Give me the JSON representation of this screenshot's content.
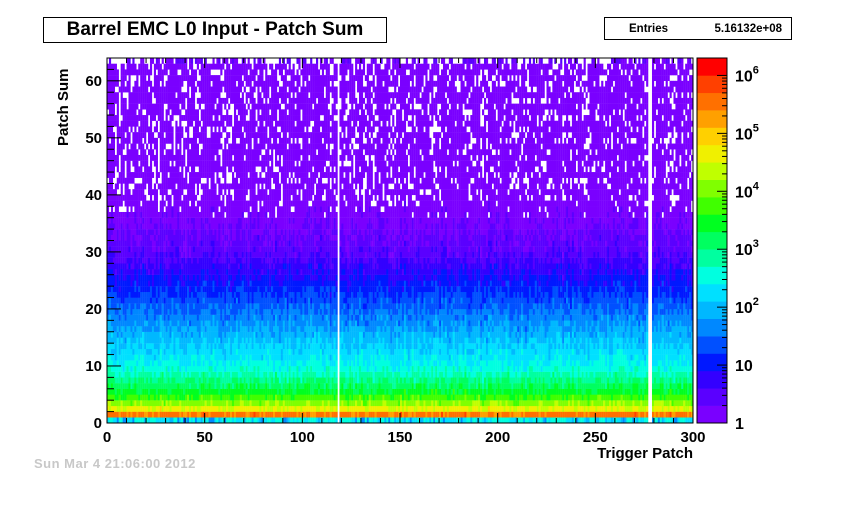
{
  "chart_data": {
    "type": "heatmap",
    "title": "Barrel EMC L0 Input - Patch Sum",
    "xlabel": "Trigger Patch",
    "ylabel": "Patch Sum",
    "xlim": [
      0,
      300
    ],
    "ylim": [
      0,
      64
    ],
    "x_ticks": [
      "0",
      "50",
      "100",
      "150",
      "200",
      "250",
      "300"
    ],
    "y_ticks": [
      "0",
      "10",
      "20",
      "30",
      "40",
      "50",
      "60"
    ],
    "z_scale": "log",
    "zlim": [
      1,
      2000000
    ],
    "colorbar_ticks": [
      {
        "value": 1,
        "label": "1"
      },
      {
        "value": 10,
        "label": "10"
      },
      {
        "value": 100,
        "base": "10",
        "exp": "2"
      },
      {
        "value": 1000,
        "base": "10",
        "exp": "3"
      },
      {
        "value": 10000,
        "base": "10",
        "exp": "4"
      },
      {
        "value": 100000,
        "base": "10",
        "exp": "5"
      },
      {
        "value": 1000000,
        "base": "10",
        "exp": "6"
      }
    ],
    "stats": {
      "label": "Entries",
      "value": "5.16132e+08"
    },
    "description_rows": [
      {
        "patch_sum": 1,
        "approx_counts": 1500000
      },
      {
        "patch_sum": 2,
        "approx_counts": 60000
      },
      {
        "patch_sum": 5,
        "approx_counts": 3000
      },
      {
        "patch_sum": 10,
        "approx_counts": 300
      },
      {
        "patch_sum": 20,
        "approx_counts": 30
      },
      {
        "patch_sum": 30,
        "approx_counts": 3
      },
      {
        "patch_sum": 40,
        "approx_counts": 1
      },
      {
        "patch_sum": 63,
        "approx_counts": 1
      }
    ],
    "dead_patches": [
      118,
      277,
      278
    ],
    "palette": [
      "#7a00ff",
      "#5a00ff",
      "#3300ff",
      "#0018ff",
      "#0050ff",
      "#0088ff",
      "#00b8ff",
      "#00e0ff",
      "#00ffe0",
      "#00ffa0",
      "#00ff60",
      "#00ff20",
      "#40ff00",
      "#80ff00",
      "#c0ff00",
      "#f0f000",
      "#ffd000",
      "#ffa000",
      "#ff7000",
      "#ff4000",
      "#ff0000"
    ]
  },
  "footer_text": "Sun Mar  4 21:06:00 2012"
}
